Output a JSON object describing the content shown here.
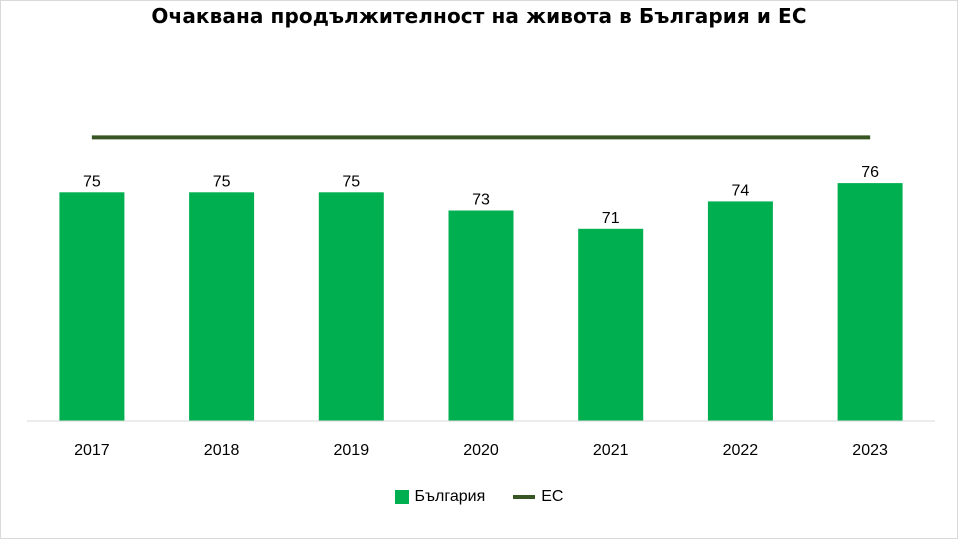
{
  "colors": {
    "bulgaria": "#00b050",
    "eu": "#375623",
    "axis": "#d9d9d9"
  },
  "chart_data": {
    "type": "bar",
    "title": "Очаквана продължителност на живота в България и ЕС",
    "categories": [
      "2017",
      "2018",
      "2019",
      "2020",
      "2021",
      "2022",
      "2023"
    ],
    "series": [
      {
        "name": "България",
        "type": "bar",
        "color": "#00b050",
        "values": [
          75,
          75,
          75,
          73,
          71,
          74,
          76
        ],
        "labels": [
          "75",
          "75",
          "75",
          "73",
          "71",
          "74",
          "76"
        ]
      },
      {
        "name": "ЕС",
        "type": "line",
        "color": "#375623",
        "values": [
          81,
          81,
          81,
          81,
          81,
          81,
          81
        ]
      }
    ],
    "xlabel": "",
    "ylabel": "",
    "ylim": [
      50,
      82
    ],
    "grid": false,
    "legend": "bottom"
  }
}
